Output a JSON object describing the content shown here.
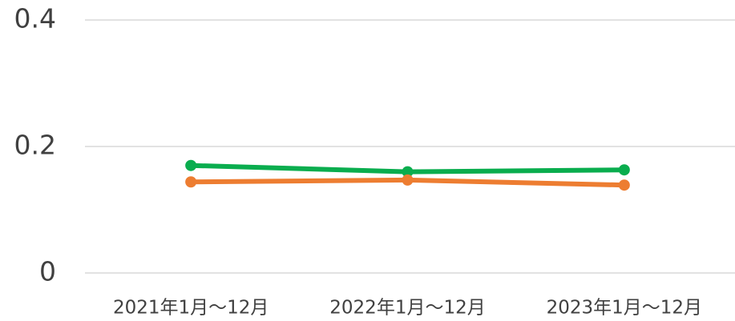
{
  "chart_data": {
    "type": "line",
    "categories": [
      "2021年1月～12月",
      "2022年1月～12月",
      "2023年1月～12月"
    ],
    "series": [
      {
        "color": "#0aad4e",
        "values": [
          0.17,
          0.16,
          0.163
        ]
      },
      {
        "color": "#ed7d31",
        "values": [
          0.144,
          0.147,
          0.139
        ]
      }
    ],
    "ylim": [
      0,
      0.4
    ],
    "yticks": [
      0,
      0.2,
      0.4
    ],
    "grid": true
  }
}
